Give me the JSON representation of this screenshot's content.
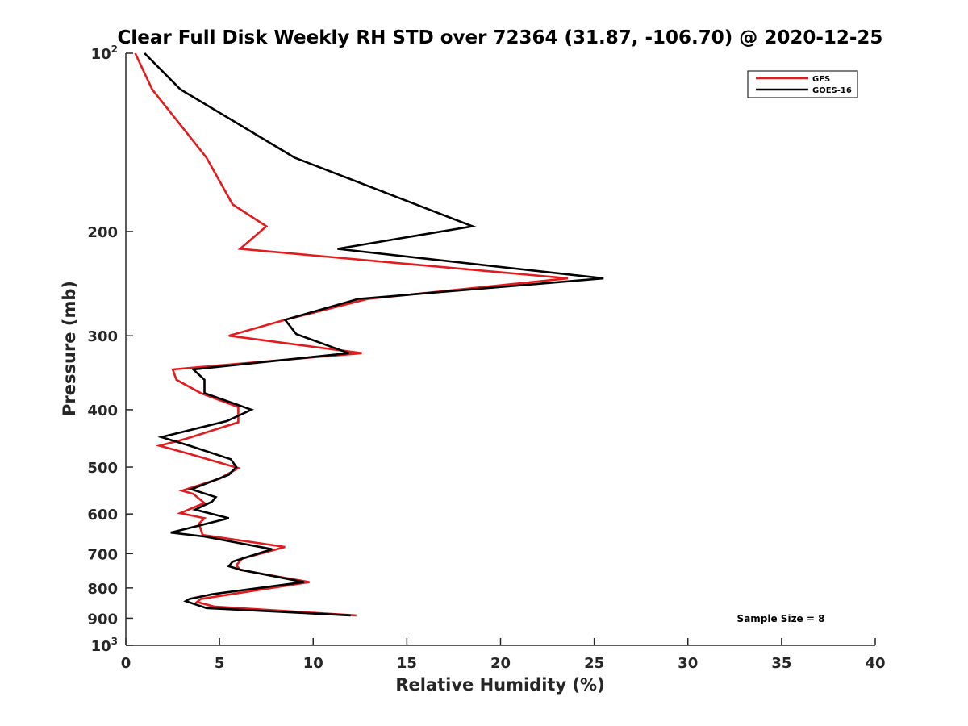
{
  "chart_data": {
    "type": "line",
    "title": "Clear Full Disk Weekly RH STD over 72364 (31.87, -106.70) @ 2020-12-25",
    "xlabel": "Relative Humidity (%)",
    "ylabel": "Pressure (mb)",
    "xlim": [
      0,
      40
    ],
    "ylim": [
      100,
      1000
    ],
    "y_scale": "log",
    "y_reversed": true,
    "grid": false,
    "legend_position": "top-right",
    "x_ticks": [
      {
        "value": 0,
        "label": "0"
      },
      {
        "value": 5,
        "label": "5"
      },
      {
        "value": 10,
        "label": "10"
      },
      {
        "value": 15,
        "label": "15"
      },
      {
        "value": 20,
        "label": "20"
      },
      {
        "value": 25,
        "label": "25"
      },
      {
        "value": 30,
        "label": "30"
      },
      {
        "value": 35,
        "label": "35"
      },
      {
        "value": 40,
        "label": "40"
      }
    ],
    "y_ticks": [
      {
        "value": 100,
        "label": "10",
        "sup": "2"
      },
      {
        "value": 200,
        "label": "200"
      },
      {
        "value": 300,
        "label": "300"
      },
      {
        "value": 400,
        "label": "400"
      },
      {
        "value": 500,
        "label": "500"
      },
      {
        "value": 600,
        "label": "600"
      },
      {
        "value": 700,
        "label": "700"
      },
      {
        "value": 800,
        "label": "800"
      },
      {
        "value": 900,
        "label": "900"
      },
      {
        "value": 1000,
        "label": "10",
        "sup": "3"
      }
    ],
    "series": [
      {
        "name": "GFS",
        "color": "#e41a1c",
        "points": [
          [
            0.5,
            100
          ],
          [
            1.4,
            115
          ],
          [
            4.3,
            150
          ],
          [
            5.7,
            180
          ],
          [
            7.5,
            196
          ],
          [
            6.1,
            214
          ],
          [
            23.6,
            240
          ],
          [
            12.9,
            260
          ],
          [
            8.5,
            282
          ],
          [
            5.5,
            300
          ],
          [
            12.6,
            321
          ],
          [
            2.5,
            342
          ],
          [
            2.7,
            356
          ],
          [
            4.0,
            375
          ],
          [
            6.0,
            396
          ],
          [
            6.0,
            420
          ],
          [
            3.2,
            448
          ],
          [
            1.8,
            460
          ],
          [
            3.4,
            475
          ],
          [
            6.0,
            502
          ],
          [
            5.0,
            523
          ],
          [
            3.0,
            548
          ],
          [
            3.6,
            555
          ],
          [
            4.2,
            575
          ],
          [
            2.9,
            598
          ],
          [
            4.2,
            610
          ],
          [
            3.9,
            623
          ],
          [
            4.1,
            651
          ],
          [
            8.5,
            682
          ],
          [
            6.2,
            714
          ],
          [
            5.9,
            732
          ],
          [
            6.1,
            746
          ],
          [
            9.8,
            782
          ],
          [
            4.0,
            835
          ],
          [
            3.8,
            845
          ],
          [
            4.7,
            860
          ],
          [
            12.3,
            890
          ]
        ]
      },
      {
        "name": "GOES-16",
        "color": "#000000",
        "points": [
          [
            1.0,
            100
          ],
          [
            2.9,
            115
          ],
          [
            9.0,
            150
          ],
          [
            18.5,
            196
          ],
          [
            11.3,
            214
          ],
          [
            25.5,
            240
          ],
          [
            12.4,
            260
          ],
          [
            8.5,
            282
          ],
          [
            9.1,
            298
          ],
          [
            11.9,
            321
          ],
          [
            3.6,
            342
          ],
          [
            4.2,
            356
          ],
          [
            4.2,
            375
          ],
          [
            6.7,
            400
          ],
          [
            5.4,
            418
          ],
          [
            1.9,
            445
          ],
          [
            3.4,
            460
          ],
          [
            5.6,
            485
          ],
          [
            5.9,
            500
          ],
          [
            5.5,
            515
          ],
          [
            3.5,
            545
          ],
          [
            4.8,
            562
          ],
          [
            4.6,
            572
          ],
          [
            3.7,
            590
          ],
          [
            5.5,
            610
          ],
          [
            2.4,
            645
          ],
          [
            4.2,
            655
          ],
          [
            7.8,
            688
          ],
          [
            5.7,
            722
          ],
          [
            5.5,
            735
          ],
          [
            6.1,
            745
          ],
          [
            9.5,
            782
          ],
          [
            4.6,
            820
          ],
          [
            3.4,
            835
          ],
          [
            3.2,
            842
          ],
          [
            4.3,
            865
          ],
          [
            12.0,
            890
          ]
        ]
      }
    ],
    "annotation": "Sample Size = 8"
  }
}
